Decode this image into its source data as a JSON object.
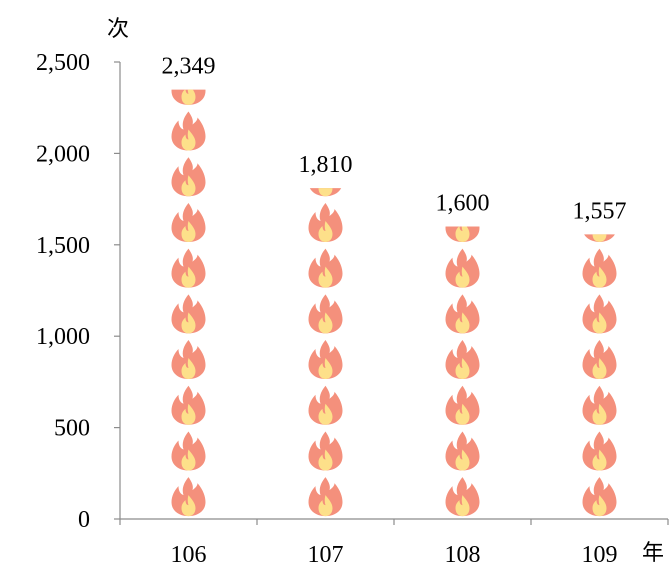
{
  "chart_data": {
    "type": "bar",
    "style": "pictograph",
    "icon": "flame-icon",
    "categories": [
      "106",
      "107",
      "108",
      "109"
    ],
    "values": [
      2349,
      1810,
      1600,
      1557
    ],
    "data_labels": [
      "2,349",
      "1,810",
      "1,600",
      "1,557"
    ],
    "y_ticks": [
      0,
      500,
      1000,
      1500,
      2000,
      2500
    ],
    "y_tick_labels": [
      "0",
      "500",
      "1,000",
      "1,500",
      "2,000",
      "2,500"
    ],
    "ylim": [
      0,
      2500
    ],
    "icon_unit": 250,
    "ylabel": "次",
    "xlabel": "年",
    "grid": false,
    "legend": "none",
    "colors": {
      "flame_outer": "#f4907c",
      "flame_inner": "#fde08a",
      "axis": "#8c8c8c"
    }
  }
}
